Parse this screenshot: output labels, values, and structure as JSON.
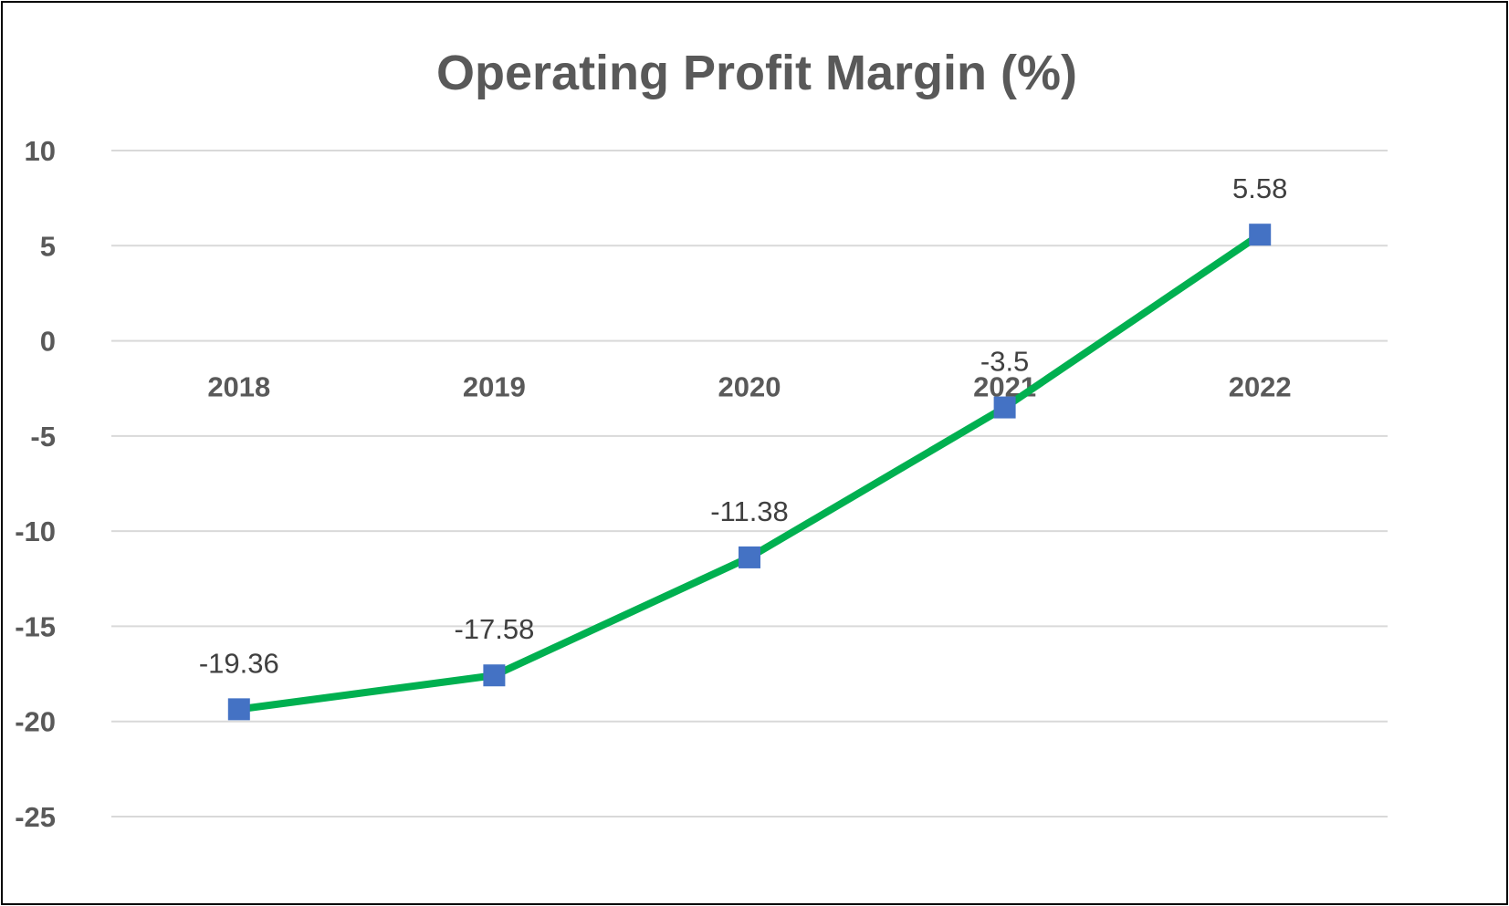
{
  "chart_data": {
    "type": "line",
    "title": "Operating Profit Margin (%)",
    "categories": [
      "2018",
      "2019",
      "2020",
      "2021",
      "2022"
    ],
    "series": [
      {
        "values": [
          -19.36,
          -17.58,
          -11.38,
          -3.5,
          5.58
        ]
      }
    ],
    "data_labels": [
      "-19.36",
      "-17.58",
      "-11.38",
      "-3.5",
      "5.58"
    ],
    "ylim": [
      -25,
      10
    ],
    "yticks": [
      10,
      5,
      0,
      -5,
      -10,
      -15,
      -20,
      -25
    ],
    "ytick_labels": [
      "10",
      "5",
      "0",
      "-5",
      "-10",
      "-15",
      "-20",
      "-25"
    ],
    "grid": true,
    "legend": "none",
    "colors": {
      "line": "#00B050",
      "marker": "#4472C4",
      "grid": "#D9D9D9",
      "text": "#595959"
    }
  }
}
